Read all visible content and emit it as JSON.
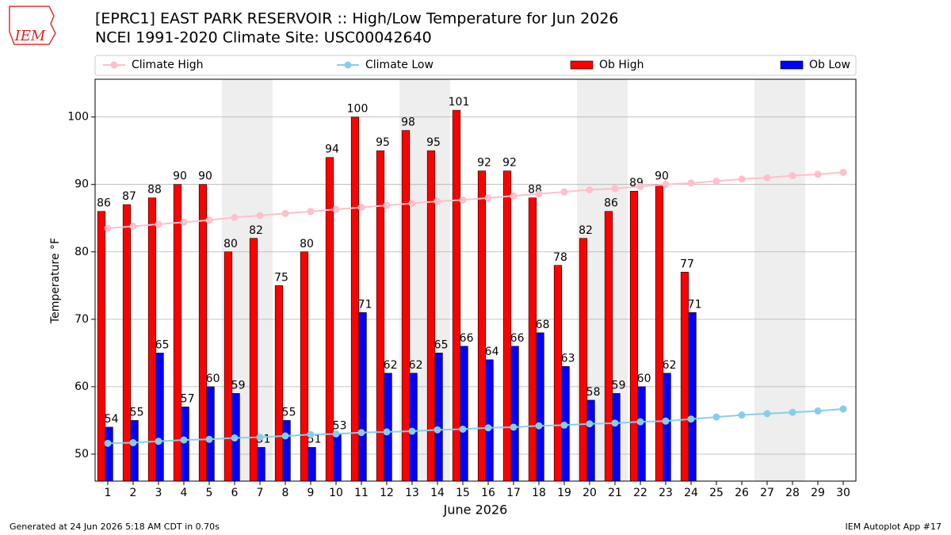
{
  "logo": "IEM",
  "footer_left": "Generated at 24 Jun 2026 5:18 AM CDT in 0.70s",
  "footer_right": "IEM Autoplot App #17",
  "chart_data": {
    "type": "bar",
    "title": "[EPRC1] EAST PARK RESERVOIR :: High/Low Temperature for Jun 2026",
    "subtitle": "NCEI 1991-2020 Climate Site: USC00042640",
    "ylabel": "Temperature °F",
    "xlabel": "June 2026",
    "x": [
      1,
      2,
      3,
      4,
      5,
      6,
      7,
      8,
      9,
      10,
      11,
      12,
      13,
      14,
      15,
      16,
      17,
      18,
      19,
      20,
      21,
      22,
      23,
      24,
      25,
      26,
      27,
      28,
      29,
      30
    ],
    "xlim": [
      0.5,
      30.5
    ],
    "xticks": [
      1,
      2,
      3,
      4,
      5,
      6,
      7,
      8,
      9,
      10,
      11,
      12,
      13,
      14,
      15,
      16,
      17,
      18,
      19,
      20,
      21,
      22,
      23,
      24,
      25,
      26,
      27,
      28,
      29,
      30
    ],
    "ylim": [
      46,
      105.6
    ],
    "yticks": [
      50,
      60,
      70,
      80,
      90,
      100
    ],
    "grid": true,
    "shaded_days": [
      6,
      7,
      13,
      14,
      20,
      21,
      27,
      28
    ],
    "series": [
      {
        "name": "Climate High",
        "type": "line",
        "color": "#ffc0cb",
        "values": [
          83.5,
          83.8,
          84.1,
          84.4,
          84.7,
          85.1,
          85.4,
          85.7,
          86.0,
          86.3,
          86.6,
          86.9,
          87.2,
          87.5,
          87.7,
          88.0,
          88.3,
          88.6,
          88.9,
          89.2,
          89.4,
          89.7,
          90.0,
          90.2,
          90.5,
          90.8,
          91.0,
          91.3,
          91.5,
          91.8
        ]
      },
      {
        "name": "Climate Low",
        "type": "line",
        "color": "#87ceeb",
        "values": [
          51.6,
          51.7,
          51.9,
          52.1,
          52.2,
          52.4,
          52.5,
          52.7,
          52.9,
          53.0,
          53.2,
          53.3,
          53.4,
          53.6,
          53.7,
          53.9,
          54.0,
          54.2,
          54.3,
          54.5,
          54.6,
          54.8,
          54.9,
          55.2,
          55.5,
          55.8,
          56.0,
          56.2,
          56.4,
          56.7
        ]
      },
      {
        "name": "Ob High",
        "type": "bar",
        "color": "#ff0000",
        "values": [
          86,
          87,
          88,
          90,
          90,
          80,
          82,
          75,
          80,
          94,
          100,
          95,
          98,
          95,
          101,
          92,
          92,
          88,
          78,
          82,
          86,
          89,
          90,
          77,
          null,
          null,
          null,
          null,
          null,
          null
        ]
      },
      {
        "name": "Ob Low",
        "type": "bar",
        "color": "#0000ff",
        "values": [
          54,
          55,
          65,
          57,
          60,
          59,
          51,
          55,
          51,
          53,
          71,
          62,
          62,
          65,
          66,
          64,
          66,
          68,
          63,
          58,
          59,
          60,
          62,
          71,
          null,
          null,
          null,
          null,
          null,
          null
        ]
      }
    ]
  }
}
